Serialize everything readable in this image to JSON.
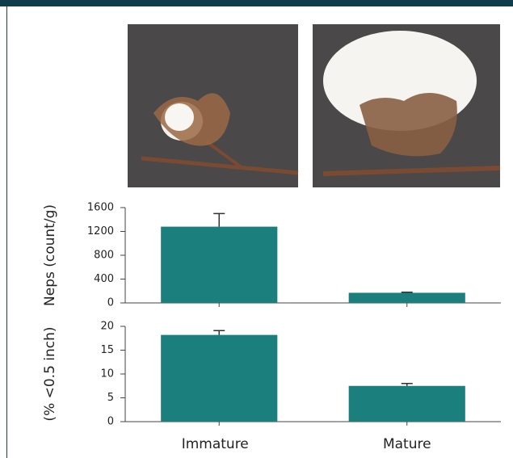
{
  "chart_data": [
    {
      "type": "bar",
      "y_label": "Neps (count/g)",
      "categories": [
        null,
        null
      ],
      "values": [
        1280,
        170
      ],
      "errors": [
        220,
        10
      ],
      "color": "#1b7f7e",
      "ylim": [
        0,
        1600
      ],
      "yticks": [
        0,
        400,
        800,
        1200,
        1600
      ]
    },
    {
      "type": "bar",
      "y_label": "(% <0.5 inch)",
      "categories": [
        "Immature",
        "Mature"
      ],
      "values": [
        18.2,
        7.5
      ],
      "errors": [
        0.9,
        0.5
      ],
      "color": "#1b7f7e",
      "ylim": [
        0,
        20
      ],
      "yticks": [
        0,
        5,
        10,
        15,
        20
      ]
    }
  ]
}
